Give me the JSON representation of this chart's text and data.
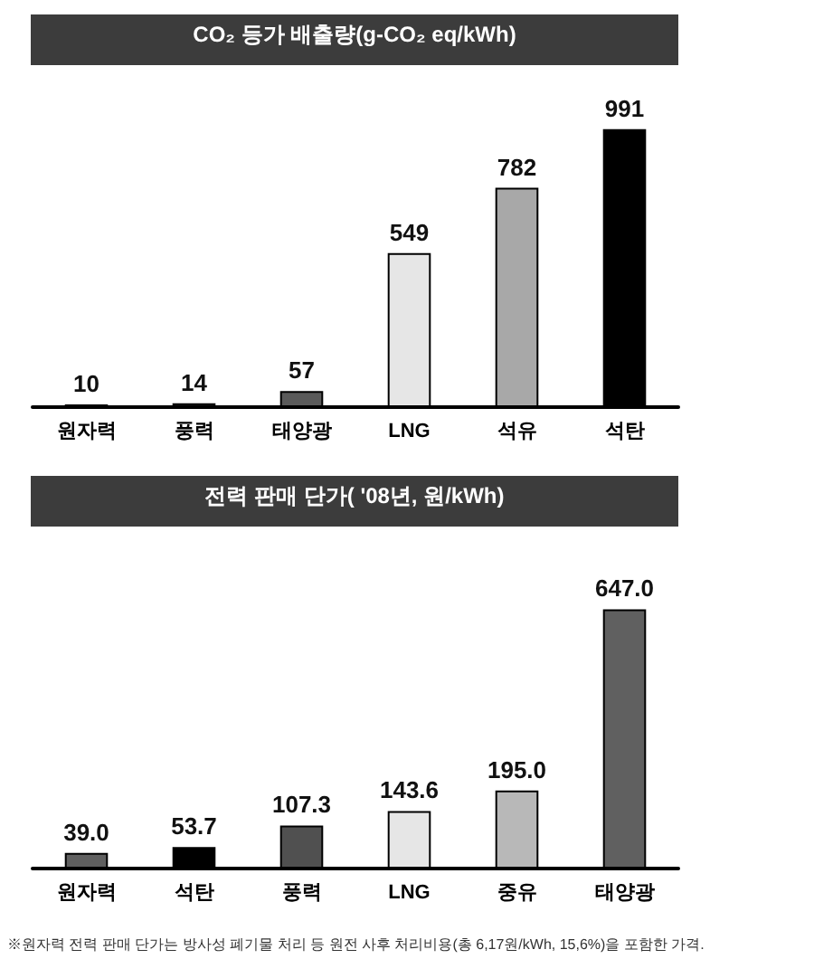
{
  "chart_data": [
    {
      "type": "bar",
      "title": "CO₂ 등가 배출량(g-CO₂ eq/kWh)",
      "categories": [
        "원자력",
        "풍력",
        "태양광",
        "LNG",
        "석유",
        "석탄"
      ],
      "values": [
        10,
        14,
        57,
        549,
        782,
        991
      ],
      "colors": [
        "#5a5a5a",
        "#5a5a5a",
        "#5a5a5a",
        "#e6e6e6",
        "#a8a8a8",
        "#000000"
      ],
      "data_labels": true
    },
    {
      "type": "bar",
      "title": "전력 판매 단가( '08년, 원/kWh)",
      "categories": [
        "원자력",
        "석탄",
        "풍력",
        "LNG",
        "중유",
        "태양광"
      ],
      "values": [
        39.0,
        53.7,
        107.3,
        143.6,
        195.0,
        647.0
      ],
      "colors": [
        "#606060",
        "#000000",
        "#505050",
        "#e6e6e6",
        "#b8b8b8",
        "#606060"
      ],
      "value_labels": [
        "39.0",
        "53.7",
        "107.3",
        "143.6",
        "195.0",
        "647.0"
      ],
      "annotations": [
        "※원자력 전력 판매 단가는 방사성 폐기물 처리 등 원전 사후 처리비용(총 6,17원/kWh, 15,6%)을 포함한 가격."
      ]
    }
  ]
}
